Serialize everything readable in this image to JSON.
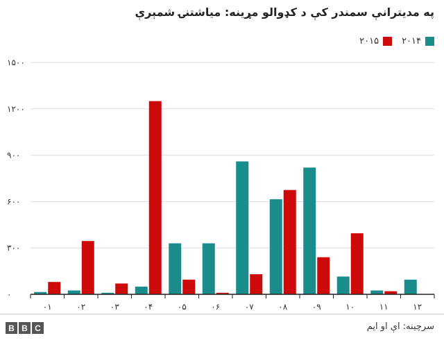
{
  "title": "په مديترانې سمندر کې د کډوالو مړينه: مياشتنۍ شمېرې",
  "source": "سرچينه: اې او ايم",
  "logo_letters": [
    "B",
    "B",
    "C"
  ],
  "colors": {
    "series_2014": "#1a8c8c",
    "series_2015": "#cc0a0a",
    "grid": "#dddddd",
    "axis": "#222222"
  },
  "chart_data": {
    "type": "bar",
    "categories": [
      "۰۱",
      "۰۲",
      "۰۳",
      "۰۴",
      "۰۵",
      "۰۶",
      "۰۷",
      "۰۸",
      "۰۹",
      "۱۰",
      "۱۱",
      "۱۲"
    ],
    "series": [
      {
        "name": "۲۰۱۴",
        "color": "#1a8c8c",
        "values": [
          15,
          25,
          10,
          50,
          330,
          330,
          860,
          615,
          820,
          115,
          25,
          95
        ]
      },
      {
        "name": "۲۰۱۵",
        "color": "#cc0a0a",
        "values": [
          80,
          345,
          70,
          1250,
          95,
          10,
          130,
          675,
          240,
          395,
          20,
          0
        ]
      }
    ],
    "y_ticks": [
      {
        "value": 0,
        "label": "۰"
      },
      {
        "value": 300,
        "label": "۳۰۰"
      },
      {
        "value": 600,
        "label": "۶۰۰"
      },
      {
        "value": 900,
        "label": "۹۰۰"
      },
      {
        "value": 1200,
        "label": "۱۲۰۰"
      },
      {
        "value": 1500,
        "label": "۱۵۰۰"
      }
    ],
    "ylim": [
      0,
      1500
    ],
    "grid": true,
    "legend_position": "top-right"
  }
}
